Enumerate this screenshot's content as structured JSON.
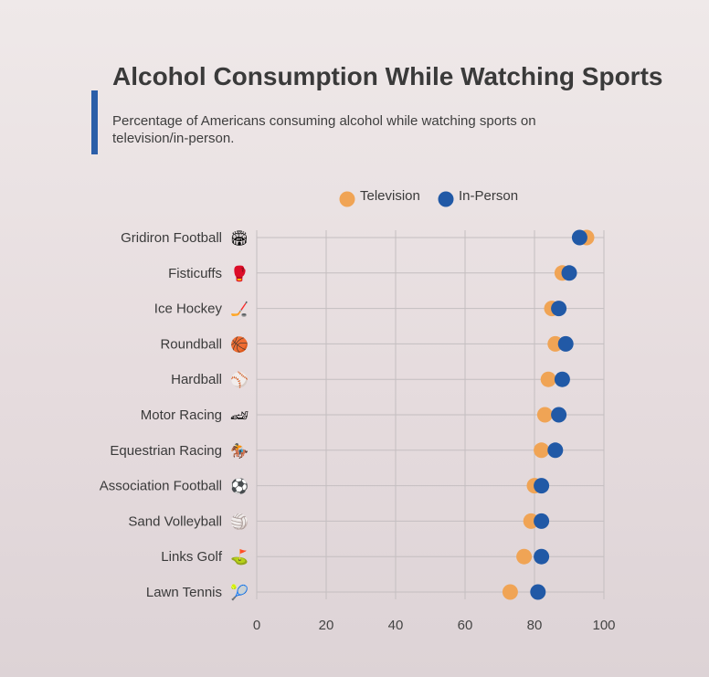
{
  "title": "Alcohol Consumption While Watching Sports",
  "subtitle": "Percentage of Americans consuming alcohol while watching sports on television/in-person.",
  "colors": {
    "television": "#f0a455",
    "in_person": "#2159a6",
    "accent": "#2a5ea8",
    "grid": "#c4bec0"
  },
  "chart_data": {
    "type": "scatter",
    "title": "Alcohol Consumption While Watching Sports",
    "categories": [
      "Gridiron Football",
      "Fisticuffs",
      "Ice Hockey",
      "Roundball",
      "Hardball",
      "Motor Racing",
      "Equestrian Racing",
      "Association Football",
      "Sand Volleyball",
      "Links Golf",
      "Lawn Tennis"
    ],
    "category_icons": [
      "🏟",
      "🥊",
      "🏒",
      "🏀",
      "⚾",
      "🏎",
      "🏇",
      "⚽",
      "🏐",
      "⛳",
      "🎾"
    ],
    "series": [
      {
        "name": "Television",
        "values": [
          95,
          88,
          85,
          86,
          84,
          83,
          82,
          80,
          79,
          77,
          73
        ]
      },
      {
        "name": "In-Person",
        "values": [
          93,
          90,
          87,
          89,
          88,
          87,
          86,
          82,
          82,
          82,
          81
        ]
      }
    ],
    "xlim": [
      0,
      100
    ],
    "xticks": [
      0,
      20,
      40,
      60,
      80,
      100
    ],
    "xlabel": "",
    "ylabel": "",
    "grid": true,
    "legend_position": "top-center"
  }
}
